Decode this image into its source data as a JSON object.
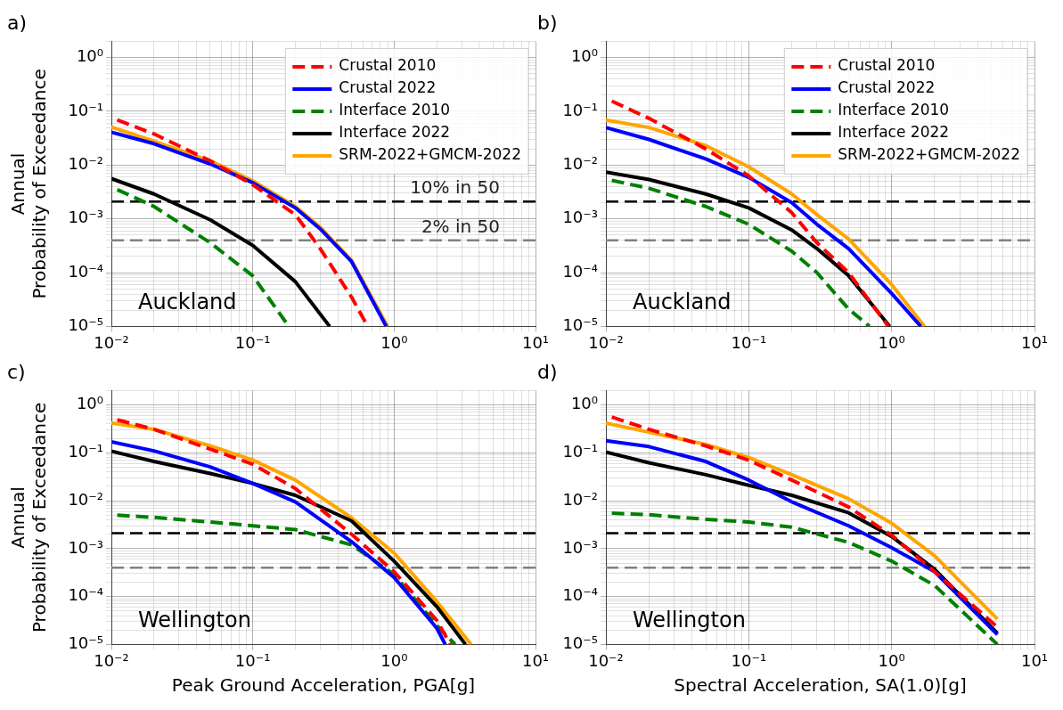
{
  "chart_data": [
    {
      "type": "line",
      "title": "a)",
      "ylabel": "Annual\nProbability of Exceedance",
      "log": "xy",
      "grid": true,
      "legend": "top right",
      "xlim": [
        0.01,
        10
      ],
      "ylim": [
        1e-05,
        2
      ],
      "xticks": [
        {
          "value": 0.01,
          "label": "10⁻²"
        },
        {
          "value": 0.1,
          "label": "10⁻¹"
        },
        {
          "value": 1,
          "label": "10⁰"
        },
        {
          "value": 10,
          "label": "10¹"
        }
      ],
      "yticks": [
        {
          "value": 1e-05,
          "label": "10⁻⁵"
        },
        {
          "value": 0.0001,
          "label": "10⁻⁴"
        },
        {
          "value": 0.001,
          "label": "10⁻³"
        },
        {
          "value": 0.01,
          "label": "10⁻²"
        },
        {
          "value": 0.1,
          "label": "10⁻¹"
        },
        {
          "value": 1,
          "label": "10⁰"
        }
      ],
      "series": [
        {
          "name": "Crustal 2010",
          "color": "#ff0000",
          "line_style": "dashed",
          "x": [
            0.011,
            0.02,
            0.05,
            0.1,
            0.2,
            0.3,
            0.5,
            0.65
          ],
          "values": [
            0.069,
            0.038,
            0.012,
            0.0043,
            0.0012,
            0.00028,
            3.5e-05,
            1e-05
          ]
        },
        {
          "name": "Crustal 2022",
          "color": "#0000ff",
          "line_style": "solid",
          "x": [
            0.01,
            0.02,
            0.05,
            0.1,
            0.2,
            0.3,
            0.5,
            0.88
          ],
          "values": [
            0.041,
            0.025,
            0.0105,
            0.0047,
            0.0016,
            0.00065,
            0.00016,
            1e-05
          ]
        },
        {
          "name": "Interface 2010",
          "color": "#008000",
          "line_style": "dashed",
          "x": [
            0.011,
            0.02,
            0.05,
            0.1,
            0.18
          ],
          "values": [
            0.0035,
            0.0017,
            0.00036,
            8.7e-05,
            1e-05
          ]
        },
        {
          "name": "Interface 2022",
          "color": "#000000",
          "line_style": "solid",
          "x": [
            0.01,
            0.02,
            0.05,
            0.1,
            0.2,
            0.35
          ],
          "values": [
            0.0056,
            0.0029,
            0.00096,
            0.00032,
            6.8e-05,
            1e-05
          ]
        },
        {
          "name": "SRM-2022+GMCM-2022",
          "color": "#ffa500",
          "line_style": "solid",
          "x": [
            0.01,
            0.02,
            0.05,
            0.1,
            0.2,
            0.3,
            0.5,
            0.9
          ],
          "values": [
            0.051,
            0.028,
            0.012,
            0.0051,
            0.0017,
            0.0007,
            0.00017,
            1e-05
          ]
        }
      ],
      "ref_lines": [
        {
          "axis": "y",
          "value": 0.0021,
          "label": "10% in 50",
          "color": "#000000",
          "line_style": "dashed"
        },
        {
          "axis": "y",
          "value": 0.0004,
          "label": "2% in 50",
          "color": "#808080",
          "line_style": "dashed"
        }
      ],
      "annotations": [
        "Auckland"
      ]
    },
    {
      "type": "line",
      "title": "b)",
      "log": "xy",
      "grid": true,
      "legend": "top right",
      "xlim": [
        0.01,
        10
      ],
      "ylim": [
        1e-05,
        2
      ],
      "xticks": [
        {
          "value": 0.01,
          "label": "10⁻²"
        },
        {
          "value": 0.1,
          "label": "10⁻¹"
        },
        {
          "value": 1,
          "label": "10⁰"
        },
        {
          "value": 10,
          "label": "10¹"
        }
      ],
      "yticks": [
        {
          "value": 1e-05,
          "label": "10⁻⁵"
        },
        {
          "value": 0.0001,
          "label": "10⁻⁴"
        },
        {
          "value": 0.001,
          "label": "10⁻³"
        },
        {
          "value": 0.01,
          "label": "10⁻²"
        },
        {
          "value": 0.1,
          "label": "10⁻¹"
        },
        {
          "value": 1,
          "label": "10⁰"
        }
      ],
      "series": [
        {
          "name": "Crustal 2010",
          "color": "#ff0000",
          "line_style": "dashed",
          "x": [
            0.011,
            0.02,
            0.05,
            0.1,
            0.2,
            0.3,
            0.5,
            0.95
          ],
          "values": [
            0.155,
            0.074,
            0.02,
            0.0063,
            0.0013,
            0.00036,
            0.0001,
            1e-05
          ]
        },
        {
          "name": "Crustal 2022",
          "color": "#0000ff",
          "line_style": "solid",
          "x": [
            0.01,
            0.02,
            0.05,
            0.1,
            0.2,
            0.3,
            0.5,
            1,
            1.6
          ],
          "values": [
            0.05,
            0.03,
            0.013,
            0.0059,
            0.002,
            0.00079,
            0.00028,
            4.1e-05,
            1e-05
          ]
        },
        {
          "name": "Interface 2010",
          "color": "#008000",
          "line_style": "dashed",
          "x": [
            0.011,
            0.02,
            0.05,
            0.1,
            0.2,
            0.3,
            0.5,
            0.7
          ],
          "values": [
            0.0052,
            0.0037,
            0.0017,
            0.00079,
            0.00025,
            0.0001,
            2.1e-05,
            1e-05
          ]
        },
        {
          "name": "Interface 2022",
          "color": "#000000",
          "line_style": "solid",
          "x": [
            0.01,
            0.02,
            0.05,
            0.1,
            0.2,
            0.3,
            0.5,
            0.97
          ],
          "values": [
            0.0074,
            0.0054,
            0.0029,
            0.0016,
            0.00062,
            0.00028,
            8.8e-05,
            1e-05
          ]
        },
        {
          "name": "SRM-2022+GMCM-2022",
          "color": "#ffa500",
          "line_style": "solid",
          "x": [
            0.01,
            0.02,
            0.05,
            0.1,
            0.2,
            0.3,
            0.5,
            1,
            1.7
          ],
          "values": [
            0.069,
            0.05,
            0.023,
            0.0093,
            0.0029,
            0.0012,
            0.00042,
            6e-05,
            1e-05
          ]
        }
      ],
      "ref_lines": [
        {
          "axis": "y",
          "value": 0.0021,
          "color": "#000000",
          "line_style": "dashed"
        },
        {
          "axis": "y",
          "value": 0.0004,
          "color": "#808080",
          "line_style": "dashed"
        }
      ],
      "annotations": [
        "Auckland"
      ]
    },
    {
      "type": "line",
      "title": "c)",
      "xlabel": "Peak Ground Acceleration, PGA[g]",
      "ylabel": "Annual\nProbability of Exceedance",
      "log": "xy",
      "grid": true,
      "xlim": [
        0.01,
        10
      ],
      "ylim": [
        1e-05,
        2
      ],
      "xticks": [
        {
          "value": 0.01,
          "label": "10⁻²"
        },
        {
          "value": 0.1,
          "label": "10⁻¹"
        },
        {
          "value": 1,
          "label": "10⁰"
        },
        {
          "value": 10,
          "label": "10¹"
        }
      ],
      "yticks": [
        {
          "value": 1e-05,
          "label": "10⁻⁵"
        },
        {
          "value": 0.0001,
          "label": "10⁻⁴"
        },
        {
          "value": 0.001,
          "label": "10⁻³"
        },
        {
          "value": 0.01,
          "label": "10⁻²"
        },
        {
          "value": 0.1,
          "label": "10⁻¹"
        },
        {
          "value": 1,
          "label": "10⁰"
        }
      ],
      "series": [
        {
          "color": "#ff0000",
          "line_style": "dashed",
          "x": [
            0.011,
            0.02,
            0.05,
            0.1,
            0.2,
            0.5,
            1,
            2,
            2.5
          ],
          "values": [
            0.49,
            0.31,
            0.12,
            0.058,
            0.018,
            0.002,
            0.00033,
            3.2e-05,
            1e-05
          ]
        },
        {
          "color": "#0000ff",
          "line_style": "solid",
          "x": [
            0.01,
            0.02,
            0.05,
            0.1,
            0.2,
            0.5,
            1,
            2,
            2.3
          ],
          "values": [
            0.17,
            0.11,
            0.051,
            0.023,
            0.0095,
            0.0014,
            0.00025,
            2.2e-05,
            1e-05
          ]
        },
        {
          "color": "#008000",
          "line_style": "dashed",
          "x": [
            0.011,
            0.02,
            0.05,
            0.1,
            0.2,
            0.5,
            1,
            2,
            2.7
          ],
          "values": [
            0.005,
            0.0045,
            0.0036,
            0.003,
            0.0025,
            0.0012,
            0.00029,
            2.5e-05,
            1e-05
          ]
        },
        {
          "color": "#000000",
          "line_style": "solid",
          "x": [
            0.01,
            0.02,
            0.05,
            0.1,
            0.2,
            0.5,
            1,
            2,
            3.2
          ],
          "values": [
            0.108,
            0.066,
            0.037,
            0.023,
            0.013,
            0.0038,
            0.00055,
            6.2e-05,
            1e-05
          ]
        },
        {
          "color": "#ffa500",
          "line_style": "solid",
          "x": [
            0.01,
            0.02,
            0.05,
            0.1,
            0.2,
            0.5,
            1,
            2,
            3.5
          ],
          "values": [
            0.42,
            0.31,
            0.14,
            0.071,
            0.027,
            0.0044,
            0.00081,
            7.9e-05,
            1e-05
          ]
        }
      ],
      "ref_lines": [
        {
          "axis": "y",
          "value": 0.0021,
          "color": "#000000",
          "line_style": "dashed"
        },
        {
          "axis": "y",
          "value": 0.0004,
          "color": "#808080",
          "line_style": "dashed"
        }
      ],
      "annotations": [
        "Wellington"
      ]
    },
    {
      "type": "line",
      "title": "d)",
      "xlabel": "Spectral Acceleration, SA(1.0)[g]",
      "log": "xy",
      "grid": true,
      "xlim": [
        0.01,
        10
      ],
      "ylim": [
        1e-05,
        2
      ],
      "xticks": [
        {
          "value": 0.01,
          "label": "10⁻²"
        },
        {
          "value": 0.1,
          "label": "10⁻¹"
        },
        {
          "value": 1,
          "label": "10⁰"
        },
        {
          "value": 10,
          "label": "10¹"
        }
      ],
      "yticks": [
        {
          "value": 1e-05,
          "label": "10⁻⁵"
        },
        {
          "value": 0.0001,
          "label": "10⁻⁴"
        },
        {
          "value": 0.001,
          "label": "10⁻³"
        },
        {
          "value": 0.01,
          "label": "10⁻²"
        },
        {
          "value": 0.1,
          "label": "10⁻¹"
        },
        {
          "value": 1,
          "label": "10⁰"
        }
      ],
      "series": [
        {
          "color": "#ff0000",
          "line_style": "dashed",
          "x": [
            0.011,
            0.02,
            0.05,
            0.1,
            0.2,
            0.5,
            1,
            2,
            5.5
          ],
          "values": [
            0.56,
            0.31,
            0.14,
            0.07,
            0.027,
            0.0074,
            0.0019,
            0.00033,
            2.3e-05
          ]
        },
        {
          "color": "#0000ff",
          "line_style": "solid",
          "x": [
            0.01,
            0.02,
            0.05,
            0.1,
            0.2,
            0.5,
            1,
            2,
            5.5
          ],
          "values": [
            0.18,
            0.135,
            0.066,
            0.027,
            0.0095,
            0.003,
            0.00105,
            0.00033,
            1.6e-05
          ]
        },
        {
          "color": "#008000",
          "line_style": "dashed",
          "x": [
            0.011,
            0.02,
            0.05,
            0.1,
            0.2,
            0.5,
            1,
            2,
            5.5
          ],
          "values": [
            0.0055,
            0.0051,
            0.0041,
            0.0036,
            0.0028,
            0.00135,
            0.00055,
            0.00017,
            1e-05
          ]
        },
        {
          "color": "#000000",
          "line_style": "solid",
          "x": [
            0.01,
            0.02,
            0.05,
            0.1,
            0.2,
            0.5,
            1,
            2,
            5.5
          ],
          "values": [
            0.104,
            0.062,
            0.035,
            0.021,
            0.013,
            0.0056,
            0.0018,
            0.00037,
            1.7e-05
          ]
        },
        {
          "color": "#ffa500",
          "line_style": "solid",
          "x": [
            0.01,
            0.02,
            0.05,
            0.1,
            0.2,
            0.5,
            1,
            2,
            5.5
          ],
          "values": [
            0.42,
            0.27,
            0.15,
            0.08,
            0.035,
            0.011,
            0.0034,
            0.00071,
            3.4e-05
          ]
        }
      ],
      "ref_lines": [
        {
          "axis": "y",
          "value": 0.0021,
          "color": "#000000",
          "line_style": "dashed"
        },
        {
          "axis": "y",
          "value": 0.0004,
          "color": "#808080",
          "line_style": "dashed"
        }
      ],
      "annotations": [
        "Wellington"
      ]
    }
  ]
}
